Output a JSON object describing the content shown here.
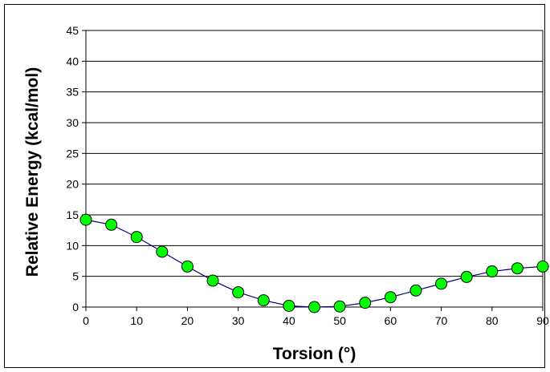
{
  "chart_data": {
    "type": "scatter",
    "title": "",
    "xlabel": "Torsion (°)",
    "ylabel": "Relative Energy (kcal/mol)",
    "xlim": [
      0,
      90
    ],
    "ylim": [
      0,
      45
    ],
    "xticks": [
      0,
      10,
      20,
      30,
      40,
      50,
      60,
      70,
      80,
      90
    ],
    "yticks": [
      0,
      5,
      10,
      15,
      20,
      25,
      30,
      35,
      40,
      45
    ],
    "grid": "horizontal",
    "series": [
      {
        "x": [
          0,
          5,
          10,
          15,
          20,
          25,
          30,
          35,
          40,
          45,
          50,
          55,
          60,
          65,
          70,
          75,
          80,
          85,
          90
        ],
        "y": [
          14.2,
          13.4,
          11.4,
          9.0,
          6.6,
          4.3,
          2.4,
          1.1,
          0.2,
          0.0,
          0.1,
          0.7,
          1.6,
          2.7,
          3.8,
          4.9,
          5.8,
          6.3,
          6.6
        ],
        "marker_color": "#00ff00",
        "line_color": "#000080"
      }
    ]
  }
}
